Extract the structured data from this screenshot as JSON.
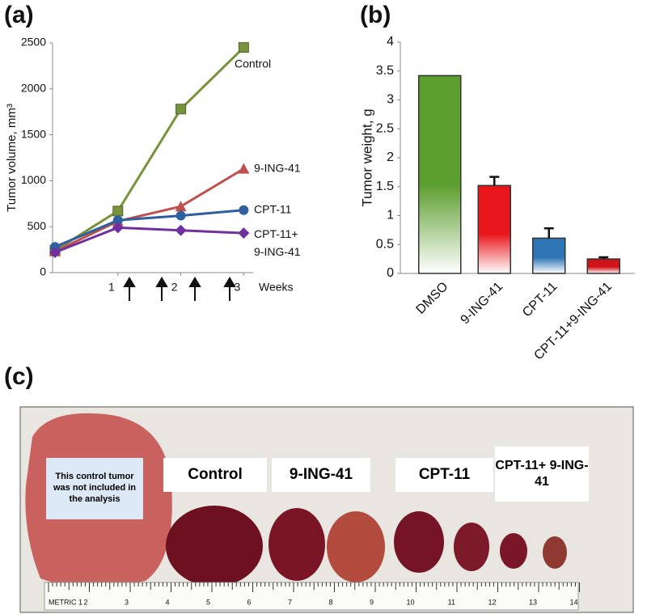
{
  "panels": {
    "a": "(a)",
    "b": "(b)",
    "c": "(c)"
  },
  "chart_data": [
    {
      "type": "line",
      "y_label": "Tumor volume, mm³",
      "x_label": "Weeks",
      "x": [
        0,
        1,
        2,
        3
      ],
      "xlim": [
        0,
        3.15
      ],
      "xticks": [
        1,
        2,
        3
      ],
      "ylim": [
        0,
        2500
      ],
      "yticks": [
        0,
        500,
        1000,
        1500,
        2000,
        2500
      ],
      "series": [
        {
          "name": "Control",
          "color": "#77933c",
          "marker": "square",
          "values": [
            240,
            670,
            1780,
            2450
          ]
        },
        {
          "name": "9-ING-41",
          "color": "#c0504d",
          "marker": "triangle",
          "values": [
            230,
            560,
            720,
            1130
          ]
        },
        {
          "name": "CPT-11",
          "color": "#2e5f9e",
          "marker": "circle",
          "values": [
            280,
            570,
            620,
            680
          ]
        },
        {
          "name": "CPT-11+ 9-ING-41",
          "color": "#7030a0",
          "marker": "diamond",
          "values": [
            220,
            490,
            460,
            430
          ]
        }
      ]
    },
    {
      "type": "bar",
      "y_label": "Tumor weight, g",
      "categories": [
        "DMSO",
        "9-ING-41",
        "CPT-11",
        "CPT-11+9-ING-41"
      ],
      "values": [
        3.42,
        1.52,
        0.61,
        0.25
      ],
      "errors": [
        null,
        0.15,
        0.17,
        0.03
      ],
      "colors": [
        "#5c9e2e",
        "#e8161b",
        "#2e75b6",
        "#d01318"
      ],
      "ylim": [
        0,
        4
      ],
      "yticks": [
        0,
        0.5,
        1,
        1.5,
        2,
        2.5,
        3,
        3.5,
        4
      ]
    }
  ],
  "photo": {
    "note": "This control tumor was not included in the analysis",
    "labels": [
      "Control",
      "9-ING-41",
      "CPT-11",
      "CPT-11+ 9-ING-41"
    ],
    "ruler_label": "METRIC 1",
    "ruler_numbers": [
      2,
      3,
      4,
      5,
      6,
      7,
      8,
      9,
      10,
      11,
      12,
      13,
      14
    ]
  }
}
